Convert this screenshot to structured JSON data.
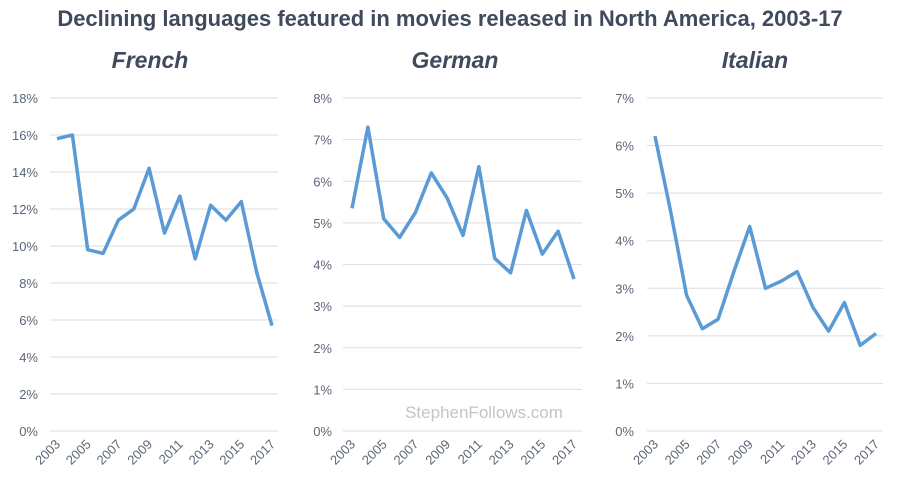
{
  "title": "Declining languages featured in movies released in North America, 2003-17",
  "watermark": "StephenFollows.com",
  "colors": {
    "line": "#5b9bd5",
    "text": "#3f4a5c",
    "grid": "#dedede"
  },
  "chart_data": [
    {
      "type": "line",
      "title": "French",
      "x": [
        2003,
        2004,
        2005,
        2006,
        2007,
        2008,
        2009,
        2010,
        2011,
        2012,
        2013,
        2014,
        2015,
        2016,
        2017
      ],
      "x_tick_labels": [
        "2003",
        "2005",
        "2007",
        "2009",
        "2011",
        "2013",
        "2015",
        "2017"
      ],
      "values": [
        15.8,
        16.0,
        9.8,
        9.6,
        11.4,
        12.0,
        14.2,
        10.7,
        12.7,
        9.3,
        12.2,
        11.4,
        12.4,
        8.6,
        5.7
      ],
      "ylim": [
        0,
        18
      ],
      "y_tick_labels": [
        "0%",
        "2%",
        "4%",
        "6%",
        "8%",
        "10%",
        "12%",
        "14%",
        "16%",
        "18%"
      ],
      "ystep": 2,
      "grid": true
    },
    {
      "type": "line",
      "title": "German",
      "x": [
        2003,
        2004,
        2005,
        2006,
        2007,
        2008,
        2009,
        2010,
        2011,
        2012,
        2013,
        2014,
        2015,
        2016,
        2017
      ],
      "x_tick_labels": [
        "2003",
        "2005",
        "2007",
        "2009",
        "2011",
        "2013",
        "2015",
        "2017"
      ],
      "values": [
        5.35,
        7.3,
        5.1,
        4.65,
        5.25,
        6.2,
        5.6,
        4.7,
        6.35,
        4.15,
        3.8,
        5.3,
        4.25,
        4.8,
        3.65
      ],
      "ylim": [
        0,
        8
      ],
      "y_tick_labels": [
        "0%",
        "1%",
        "2%",
        "3%",
        "4%",
        "5%",
        "6%",
        "7%",
        "8%"
      ],
      "ystep": 1,
      "grid": true
    },
    {
      "type": "line",
      "title": "Italian",
      "x": [
        2003,
        2004,
        2005,
        2006,
        2007,
        2008,
        2009,
        2010,
        2011,
        2012,
        2013,
        2014,
        2015,
        2016,
        2017
      ],
      "x_tick_labels": [
        "2003",
        "2005",
        "2007",
        "2009",
        "2011",
        "2013",
        "2015",
        "2017"
      ],
      "values": [
        6.2,
        4.6,
        2.85,
        2.15,
        2.35,
        3.35,
        4.3,
        3.0,
        3.15,
        3.35,
        2.6,
        2.1,
        2.7,
        1.8,
        2.05
      ],
      "ylim": [
        0,
        7
      ],
      "y_tick_labels": [
        "0%",
        "1%",
        "2%",
        "3%",
        "4%",
        "5%",
        "6%",
        "7%"
      ],
      "ystep": 1,
      "grid": true
    }
  ]
}
